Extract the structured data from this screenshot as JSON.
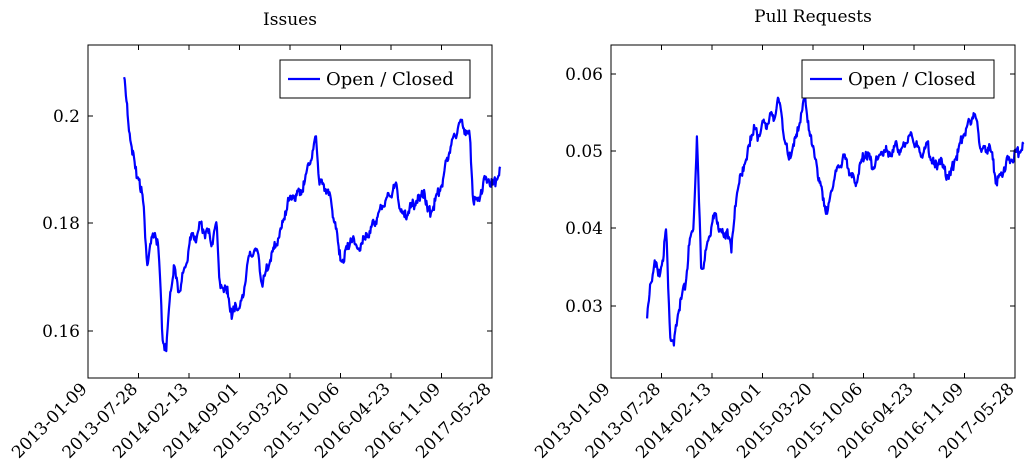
{
  "colors": {
    "series": "#0000ff",
    "axis": "#000000",
    "background": "#ffffff"
  },
  "chart_data": [
    {
      "type": "line",
      "title": "Issues",
      "xlabel": "",
      "ylabel": "",
      "x_ticks": [
        "2013-01-09",
        "2013-07-28",
        "2014-02-13",
        "2014-09-01",
        "2015-03-20",
        "2015-10-06",
        "2016-04-23",
        "2016-11-09",
        "2017-05-28"
      ],
      "y_ticks": [
        "0.16",
        "0.18",
        "0.2"
      ],
      "ylim": [
        0.151,
        0.213
      ],
      "legend": {
        "label": "Open / Closed",
        "position": "top-right"
      },
      "series": [
        {
          "name": "Open / Closed",
          "x": [
            "2013-06-01",
            "2013-06-15",
            "2013-07-01",
            "2013-07-15",
            "2013-08-01",
            "2013-08-15",
            "2013-09-01",
            "2013-09-15",
            "2013-10-01",
            "2013-10-15",
            "2013-11-01",
            "2013-11-15",
            "2013-12-01",
            "2013-12-15",
            "2014-01-01",
            "2014-01-15",
            "2014-02-01",
            "2014-02-15",
            "2014-03-01",
            "2014-03-15",
            "2014-04-01",
            "2014-04-15",
            "2014-05-01",
            "2014-05-15",
            "2014-06-01",
            "2014-06-15",
            "2014-07-01",
            "2014-07-15",
            "2014-08-01",
            "2014-08-15",
            "2014-09-01",
            "2014-09-15",
            "2014-10-01",
            "2014-10-15",
            "2014-11-01",
            "2014-11-15",
            "2014-12-01",
            "2014-12-15",
            "2015-01-01",
            "2015-01-15",
            "2015-02-01",
            "2015-02-15",
            "2015-03-01",
            "2015-03-15",
            "2015-04-01",
            "2015-04-15",
            "2015-05-01",
            "2015-05-15",
            "2015-06-01",
            "2015-06-15",
            "2015-07-01",
            "2015-07-15",
            "2015-08-01",
            "2015-08-15",
            "2015-09-01",
            "2015-09-15",
            "2015-10-01",
            "2015-10-15",
            "2015-11-01",
            "2015-11-15",
            "2015-12-01",
            "2015-12-15",
            "2016-01-01",
            "2016-01-15",
            "2016-02-01",
            "2016-02-15",
            "2016-03-01",
            "2016-03-15",
            "2016-04-01",
            "2016-04-15",
            "2016-05-01",
            "2016-05-15",
            "2016-06-01",
            "2016-06-15",
            "2016-07-01",
            "2016-07-15",
            "2016-08-01",
            "2016-08-15",
            "2016-09-01",
            "2016-09-15",
            "2016-10-01",
            "2016-10-15",
            "2016-11-01",
            "2016-11-15",
            "2016-12-01",
            "2016-12-15",
            "2017-01-01",
            "2017-01-15",
            "2017-02-01",
            "2017-02-15",
            "2017-03-01",
            "2017-03-15",
            "2017-04-01",
            "2017-04-15",
            "2017-05-01",
            "2017-05-15",
            "2017-06-01",
            "2017-06-15",
            "2017-06-30"
          ],
          "y": [
            0.207,
            0.2,
            0.194,
            0.19,
            0.188,
            0.184,
            0.172,
            0.176,
            0.178,
            0.175,
            0.158,
            0.156,
            0.167,
            0.172,
            0.167,
            0.169,
            0.172,
            0.176,
            0.178,
            0.177,
            0.18,
            0.178,
            0.178,
            0.176,
            0.18,
            0.169,
            0.167,
            0.168,
            0.162,
            0.165,
            0.164,
            0.166,
            0.172,
            0.174,
            0.175,
            0.174,
            0.168,
            0.171,
            0.173,
            0.175,
            0.177,
            0.179,
            0.182,
            0.184,
            0.185,
            0.185,
            0.186,
            0.187,
            0.191,
            0.192,
            0.196,
            0.187,
            0.187,
            0.186,
            0.183,
            0.18,
            0.174,
            0.173,
            0.175,
            0.177,
            0.176,
            0.175,
            0.176,
            0.178,
            0.178,
            0.18,
            0.181,
            0.183,
            0.184,
            0.185,
            0.186,
            0.187,
            0.182,
            0.181,
            0.182,
            0.183,
            0.184,
            0.184,
            0.186,
            0.182,
            0.182,
            0.184,
            0.186,
            0.188,
            0.192,
            0.194,
            0.196,
            0.198,
            0.198,
            0.197,
            0.196,
            0.184,
            0.184,
            0.186,
            0.188,
            0.188,
            0.187,
            0.188,
            0.19
          ]
        }
      ]
    },
    {
      "type": "line",
      "title": "Pull Requests",
      "xlabel": "",
      "ylabel": "",
      "x_ticks": [
        "2013-01-09",
        "2013-07-28",
        "2014-02-13",
        "2014-09-01",
        "2015-03-20",
        "2015-10-06",
        "2016-04-23",
        "2016-11-09",
        "2017-05-28"
      ],
      "y_ticks": [
        "0.03",
        "0.04",
        "0.05",
        "0.06"
      ],
      "ylim": [
        0.0208,
        0.0638
      ],
      "legend": {
        "label": "Open / Closed",
        "position": "top-right"
      },
      "series": [
        {
          "name": "Open / Closed",
          "x": [
            "2013-06-01",
            "2013-06-15",
            "2013-07-01",
            "2013-07-15",
            "2013-08-01",
            "2013-08-15",
            "2013-09-01",
            "2013-09-15",
            "2013-10-01",
            "2013-10-15",
            "2013-11-01",
            "2013-11-15",
            "2013-12-01",
            "2013-12-15",
            "2014-01-01",
            "2014-01-15",
            "2014-02-01",
            "2014-02-15",
            "2014-03-01",
            "2014-03-15",
            "2014-04-01",
            "2014-04-15",
            "2014-05-01",
            "2014-05-15",
            "2014-06-01",
            "2014-06-15",
            "2014-07-01",
            "2014-07-15",
            "2014-08-01",
            "2014-08-15",
            "2014-09-01",
            "2014-09-15",
            "2014-10-01",
            "2014-10-15",
            "2014-11-01",
            "2014-11-15",
            "2014-12-01",
            "2014-12-15",
            "2015-01-01",
            "2015-01-15",
            "2015-02-01",
            "2015-02-15",
            "2015-03-01",
            "2015-03-15",
            "2015-04-01",
            "2015-04-15",
            "2015-05-01",
            "2015-05-15",
            "2015-06-01",
            "2015-06-15",
            "2015-07-01",
            "2015-07-15",
            "2015-08-01",
            "2015-08-15",
            "2015-09-01",
            "2015-09-15",
            "2015-10-01",
            "2015-10-15",
            "2015-11-01",
            "2015-11-15",
            "2015-12-01",
            "2015-12-15",
            "2016-01-01",
            "2016-01-15",
            "2016-02-01",
            "2016-02-15",
            "2016-03-01",
            "2016-03-15",
            "2016-04-01",
            "2016-04-15",
            "2016-05-01",
            "2016-05-15",
            "2016-06-01",
            "2016-06-15",
            "2016-07-01",
            "2016-07-15",
            "2016-08-01",
            "2016-08-15",
            "2016-09-01",
            "2016-09-15",
            "2016-10-01",
            "2016-10-15",
            "2016-11-01",
            "2016-11-15",
            "2016-12-01",
            "2016-12-15",
            "2017-01-01",
            "2017-01-15",
            "2017-02-01",
            "2017-02-15",
            "2017-03-01",
            "2017-03-15",
            "2017-04-01",
            "2017-04-15",
            "2017-05-01",
            "2017-05-15",
            "2017-06-01",
            "2017-06-15",
            "2017-06-30"
          ],
          "y": [
            0.0285,
            0.033,
            0.036,
            0.034,
            0.036,
            0.04,
            0.026,
            0.025,
            0.029,
            0.031,
            0.033,
            0.038,
            0.04,
            0.052,
            0.035,
            0.036,
            0.039,
            0.041,
            0.042,
            0.04,
            0.039,
            0.04,
            0.037,
            0.043,
            0.046,
            0.048,
            0.049,
            0.052,
            0.053,
            0.052,
            0.054,
            0.053,
            0.055,
            0.054,
            0.057,
            0.055,
            0.051,
            0.049,
            0.051,
            0.052,
            0.055,
            0.057,
            0.054,
            0.051,
            0.049,
            0.046,
            0.044,
            0.042,
            0.045,
            0.047,
            0.048,
            0.049,
            0.049,
            0.047,
            0.046,
            0.047,
            0.049,
            0.05,
            0.049,
            0.048,
            0.049,
            0.05,
            0.05,
            0.05,
            0.05,
            0.051,
            0.05,
            0.051,
            0.052,
            0.052,
            0.051,
            0.05,
            0.05,
            0.051,
            0.049,
            0.048,
            0.049,
            0.048,
            0.047,
            0.047,
            0.049,
            0.05,
            0.052,
            0.053,
            0.054,
            0.055,
            0.053,
            0.05,
            0.05,
            0.051,
            0.049,
            0.046,
            0.047,
            0.048,
            0.049,
            0.049,
            0.05,
            0.05,
            0.051
          ]
        }
      ]
    }
  ]
}
